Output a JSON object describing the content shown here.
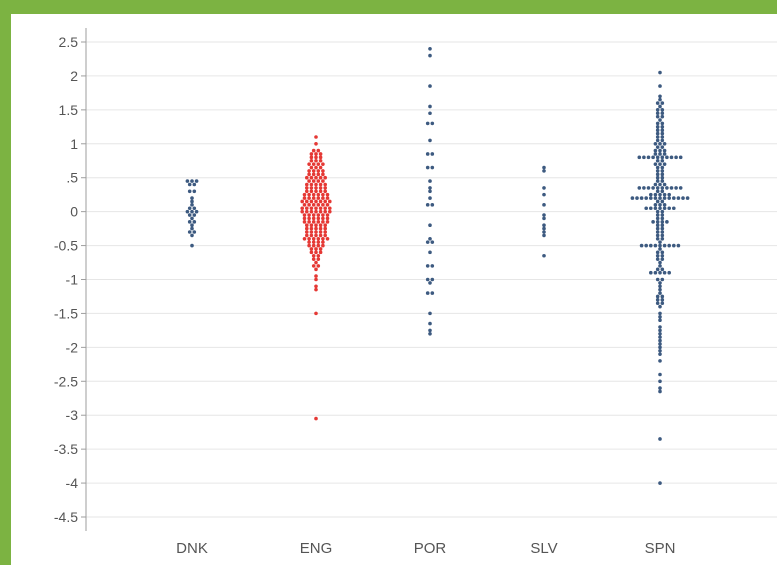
{
  "chart_data": {
    "type": "scatter",
    "subtype": "dot-plot",
    "title": "",
    "xlabel": "",
    "ylabel": "",
    "categories": [
      "DNK",
      "ENG",
      "POR",
      "SLV",
      "SPN"
    ],
    "ylim": [
      -4.5,
      2.5
    ],
    "y_ticks": [
      2.5,
      2,
      1.5,
      1,
      0.5,
      0,
      -0.5,
      -1,
      -1.5,
      -2,
      -2.5,
      -3,
      -3.5,
      -4,
      -4.5
    ],
    "y_tick_labels": [
      "2.5",
      "2",
      "1.5",
      "1",
      ".5",
      "0",
      "-0.5",
      "-1",
      "-1.5",
      "-2",
      "-2.5",
      "-3",
      "-3.5",
      "-4",
      "-4.5"
    ],
    "grid": true,
    "colors": {
      "default": "#3d5a80",
      "highlight": "#e53935",
      "grid": "#e6e6e6",
      "axis": "#9e9e9e"
    },
    "series": [
      {
        "category": "DNK",
        "color": "#3d5a80",
        "values": [
          0.45,
          0.45,
          0.45,
          0.4,
          0.4,
          0.3,
          0.3,
          0.2,
          0.15,
          0.1,
          0.05,
          0.05,
          0.0,
          0.0,
          0.0,
          -0.05,
          -0.05,
          -0.1,
          -0.15,
          -0.15,
          -0.2,
          -0.25,
          -0.3,
          -0.3,
          -0.35,
          -0.5
        ]
      },
      {
        "category": "ENG",
        "color": "#e53935",
        "values": [
          1.1,
          1.0,
          0.9,
          0.9,
          0.85,
          0.85,
          0.85,
          0.8,
          0.8,
          0.8,
          0.75,
          0.75,
          0.75,
          0.7,
          0.7,
          0.7,
          0.7,
          0.65,
          0.65,
          0.65,
          0.6,
          0.6,
          0.6,
          0.6,
          0.55,
          0.55,
          0.55,
          0.55,
          0.5,
          0.5,
          0.5,
          0.5,
          0.5,
          0.45,
          0.45,
          0.45,
          0.45,
          0.4,
          0.4,
          0.4,
          0.4,
          0.4,
          0.35,
          0.35,
          0.35,
          0.35,
          0.35,
          0.3,
          0.3,
          0.3,
          0.3,
          0.3,
          0.25,
          0.25,
          0.25,
          0.25,
          0.25,
          0.25,
          0.2,
          0.2,
          0.2,
          0.2,
          0.2,
          0.2,
          0.15,
          0.15,
          0.15,
          0.15,
          0.15,
          0.15,
          0.15,
          0.1,
          0.1,
          0.1,
          0.1,
          0.1,
          0.1,
          0.05,
          0.05,
          0.05,
          0.05,
          0.05,
          0.05,
          0.05,
          0.0,
          0.0,
          0.0,
          0.0,
          0.0,
          0.0,
          0.0,
          -0.05,
          -0.05,
          -0.05,
          -0.05,
          -0.05,
          -0.05,
          -0.1,
          -0.1,
          -0.1,
          -0.1,
          -0.1,
          -0.1,
          -0.15,
          -0.15,
          -0.15,
          -0.15,
          -0.15,
          -0.15,
          -0.2,
          -0.2,
          -0.2,
          -0.2,
          -0.2,
          -0.25,
          -0.25,
          -0.25,
          -0.25,
          -0.25,
          -0.3,
          -0.3,
          -0.3,
          -0.3,
          -0.3,
          -0.35,
          -0.35,
          -0.35,
          -0.35,
          -0.35,
          -0.4,
          -0.4,
          -0.4,
          -0.4,
          -0.4,
          -0.4,
          -0.45,
          -0.45,
          -0.45,
          -0.45,
          -0.5,
          -0.5,
          -0.5,
          -0.5,
          -0.55,
          -0.55,
          -0.55,
          -0.6,
          -0.6,
          -0.6,
          -0.65,
          -0.65,
          -0.7,
          -0.7,
          -0.75,
          -0.8,
          -0.8,
          -0.85,
          -0.95,
          -1.0,
          -1.1,
          -1.15,
          -1.5,
          -3.05
        ]
      },
      {
        "category": "POR",
        "color": "#3d5a80",
        "values": [
          2.4,
          2.3,
          1.85,
          1.55,
          1.45,
          1.3,
          1.3,
          1.05,
          0.85,
          0.85,
          0.65,
          0.65,
          0.45,
          0.35,
          0.3,
          0.2,
          0.1,
          0.1,
          -0.2,
          -0.4,
          -0.45,
          -0.45,
          -0.6,
          -0.8,
          -0.8,
          -1.0,
          -1.0,
          -1.05,
          -1.2,
          -1.2,
          -1.5,
          -1.65,
          -1.75,
          -1.8
        ]
      },
      {
        "category": "SLV",
        "color": "#3d5a80",
        "values": [
          0.65,
          0.6,
          0.35,
          0.25,
          0.1,
          -0.05,
          -0.1,
          -0.2,
          -0.25,
          -0.3,
          -0.35,
          -0.65
        ]
      },
      {
        "category": "SPN",
        "color": "#3d5a80",
        "values": [
          2.05,
          1.85,
          1.7,
          1.65,
          1.6,
          1.6,
          1.55,
          1.5,
          1.5,
          1.45,
          1.45,
          1.4,
          1.4,
          1.35,
          1.3,
          1.3,
          1.25,
          1.25,
          1.2,
          1.2,
          1.15,
          1.15,
          1.1,
          1.1,
          1.05,
          1.05,
          1.0,
          1.0,
          1.0,
          0.95,
          0.95,
          0.9,
          0.9,
          0.9,
          0.85,
          0.85,
          0.85,
          0.8,
          0.8,
          0.8,
          0.8,
          0.8,
          0.8,
          0.8,
          0.8,
          0.8,
          0.8,
          0.75,
          0.75,
          0.7,
          0.7,
          0.7,
          0.65,
          0.65,
          0.6,
          0.6,
          0.55,
          0.55,
          0.5,
          0.5,
          0.45,
          0.45,
          0.4,
          0.4,
          0.4,
          0.35,
          0.35,
          0.35,
          0.35,
          0.35,
          0.35,
          0.35,
          0.35,
          0.35,
          0.35,
          0.3,
          0.3,
          0.25,
          0.25,
          0.25,
          0.25,
          0.25,
          0.2,
          0.2,
          0.2,
          0.2,
          0.2,
          0.2,
          0.2,
          0.2,
          0.2,
          0.2,
          0.2,
          0.2,
          0.2,
          0.15,
          0.15,
          0.1,
          0.1,
          0.1,
          0.05,
          0.05,
          0.05,
          0.05,
          0.05,
          0.05,
          0.05,
          0.0,
          0.0,
          -0.05,
          -0.05,
          -0.1,
          -0.1,
          -0.15,
          -0.15,
          -0.15,
          -0.15,
          -0.2,
          -0.2,
          -0.25,
          -0.25,
          -0.3,
          -0.3,
          -0.35,
          -0.35,
          -0.4,
          -0.4,
          -0.45,
          -0.5,
          -0.5,
          -0.5,
          -0.5,
          -0.5,
          -0.5,
          -0.5,
          -0.5,
          -0.5,
          -0.55,
          -0.6,
          -0.6,
          -0.65,
          -0.65,
          -0.7,
          -0.7,
          -0.75,
          -0.8,
          -0.85,
          -0.85,
          -0.9,
          -0.9,
          -0.9,
          -0.9,
          -0.9,
          -1.0,
          -1.0,
          -1.05,
          -1.1,
          -1.15,
          -1.2,
          -1.25,
          -1.25,
          -1.3,
          -1.3,
          -1.35,
          -1.35,
          -1.4,
          -1.5,
          -1.55,
          -1.6,
          -1.7,
          -1.75,
          -1.8,
          -1.85,
          -1.9,
          -1.95,
          -2.0,
          -2.05,
          -2.1,
          -2.2,
          -2.4,
          -2.5,
          -2.6,
          -2.65,
          -3.35,
          -4.0
        ]
      }
    ]
  }
}
